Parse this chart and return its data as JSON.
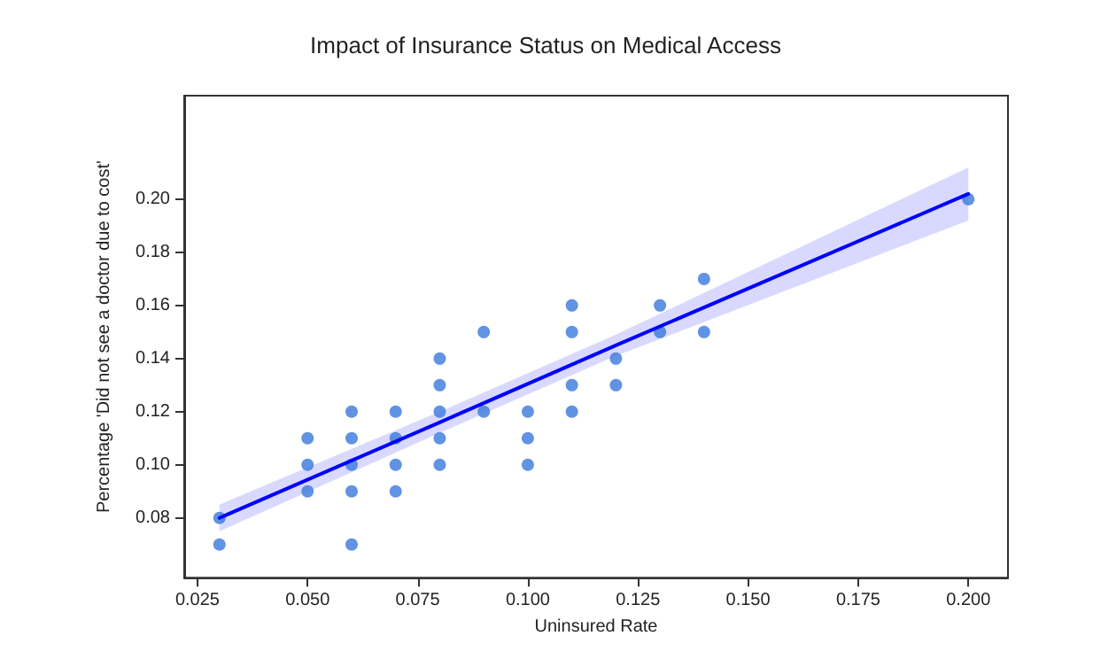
{
  "chart_data": {
    "type": "scatter",
    "title": "Impact of Insurance Status on Medical Access",
    "xlabel": "Uninsured Rate",
    "ylabel": "Percentage 'Did not see a doctor due to cost'",
    "series": [
      {
        "color": "#3a78dc",
        "marker": "circle",
        "x": [
          0.03,
          0.03,
          0.05,
          0.05,
          0.05,
          0.06,
          0.06,
          0.06,
          0.06,
          0.06,
          0.07,
          0.07,
          0.07,
          0.07,
          0.08,
          0.08,
          0.08,
          0.08,
          0.08,
          0.09,
          0.09,
          0.1,
          0.1,
          0.1,
          0.11,
          0.11,
          0.11,
          0.11,
          0.12,
          0.12,
          0.13,
          0.13,
          0.14,
          0.14,
          0.2
        ],
        "values": [
          0.08,
          0.07,
          0.11,
          0.1,
          0.09,
          0.12,
          0.11,
          0.1,
          0.09,
          0.07,
          0.12,
          0.11,
          0.1,
          0.09,
          0.14,
          0.13,
          0.12,
          0.11,
          0.1,
          0.15,
          0.12,
          0.12,
          0.11,
          0.1,
          0.16,
          0.15,
          0.13,
          0.12,
          0.14,
          0.13,
          0.16,
          0.15,
          0.17,
          0.15,
          0.2
        ]
      },
      {
        "type": "line",
        "marker": "none",
        "color": "#0000ff",
        "x": [
          0.03,
          0.08,
          0.12,
          0.2
        ],
        "values": [
          0.08,
          0.116,
          0.145,
          0.202
        ],
        "lower": [
          0.075,
          0.112,
          0.141,
          0.192
        ],
        "upper": [
          0.085,
          0.12,
          0.149,
          0.212
        ]
      }
    ],
    "xlim": [
      0.022,
      0.209
    ],
    "xticks": [
      {
        "value": 0.025,
        "label": "0.025"
      },
      {
        "value": 0.05,
        "label": "0.050"
      },
      {
        "value": 0.075,
        "label": "0.075"
      },
      {
        "value": 0.1,
        "label": "0.100"
      },
      {
        "value": 0.125,
        "label": "0.125"
      },
      {
        "value": 0.15,
        "label": "0.150"
      },
      {
        "value": 0.175,
        "label": "0.175"
      },
      {
        "value": 0.2,
        "label": "0.200"
      }
    ],
    "ylim": [
      0.0575,
      0.239
    ],
    "yticks": [
      {
        "value": 0.08,
        "label": "0.08"
      },
      {
        "value": 0.1,
        "label": "0.10"
      },
      {
        "value": 0.12,
        "label": "0.12"
      },
      {
        "value": 0.14,
        "label": "0.14"
      },
      {
        "value": 0.16,
        "label": "0.16"
      },
      {
        "value": 0.18,
        "label": "0.18"
      },
      {
        "value": 0.2,
        "label": "0.20"
      }
    ],
    "grid": false,
    "line_style": "solid"
  }
}
